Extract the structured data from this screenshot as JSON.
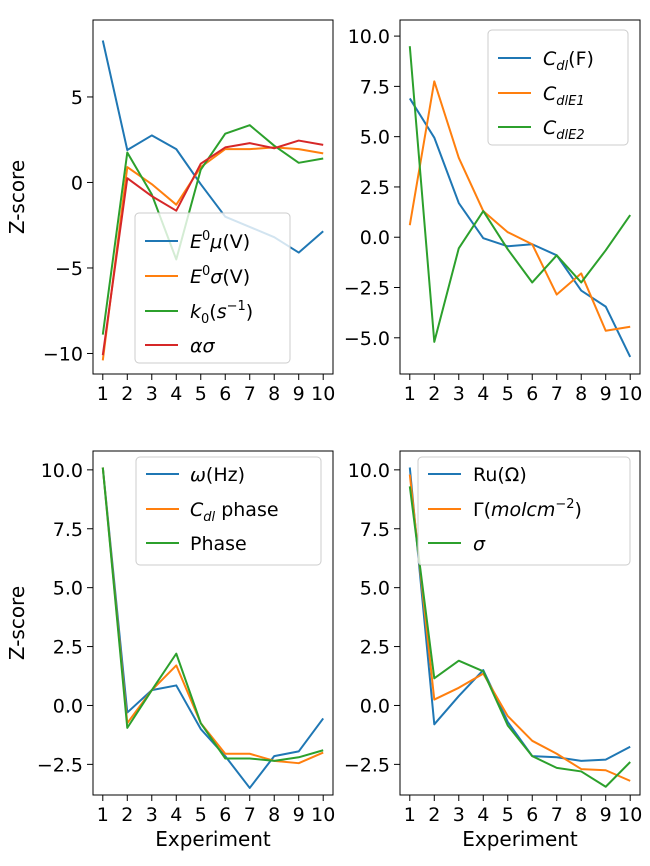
{
  "chart_data": [
    {
      "type": "line",
      "x": [
        1,
        2,
        3,
        4,
        5,
        6,
        7,
        8,
        9,
        10
      ],
      "ylabel": "Z-score",
      "xlabel": "",
      "ylim": [
        -11.2,
        9.5
      ],
      "yticks": [
        5,
        0,
        -5,
        -10
      ],
      "ytick_labels": [
        "5",
        "0",
        "−5",
        "−10"
      ],
      "legend_position": "lower-right",
      "series": [
        {
          "name": "E0μ(V)",
          "color": "#1f77b4",
          "values": [
            8.3,
            1.9,
            2.75,
            1.95,
            -0.1,
            -2.0,
            -2.6,
            -3.2,
            -4.1,
            -2.85
          ]
        },
        {
          "name": "E0σ(V)",
          "color": "#ff7f0e",
          "values": [
            -10.4,
            0.9,
            -0.1,
            -1.3,
            0.9,
            1.95,
            1.95,
            2.05,
            1.95,
            1.7
          ]
        },
        {
          "name": "k0(s−1)",
          "color": "#2ca02c",
          "values": [
            -8.9,
            1.75,
            -0.7,
            -4.5,
            0.75,
            2.85,
            3.35,
            2.15,
            1.15,
            1.4
          ]
        },
        {
          "name": "ασ",
          "color": "#d62728",
          "values": [
            -10.1,
            0.25,
            -0.8,
            -1.65,
            1.1,
            2.05,
            2.3,
            2.0,
            2.45,
            2.2
          ]
        }
      ]
    },
    {
      "type": "line",
      "x": [
        1,
        2,
        3,
        4,
        5,
        6,
        7,
        8,
        9,
        10
      ],
      "ylabel": "",
      "xlabel": "",
      "ylim": [
        -6.8,
        10.8
      ],
      "yticks": [
        10.0,
        7.5,
        5.0,
        2.5,
        0.0,
        -2.5,
        -5.0
      ],
      "ytick_labels": [
        "10.0",
        "7.5",
        "5.0",
        "2.5",
        "0.0",
        "−2.5",
        "−5.0"
      ],
      "legend_position": "upper-right",
      "series": [
        {
          "name": "Cdl(F)",
          "color": "#1f77b4",
          "values": [
            6.9,
            4.95,
            1.7,
            -0.05,
            -0.45,
            -0.35,
            -0.9,
            -2.65,
            -3.45,
            -5.95
          ]
        },
        {
          "name": "CdlE1",
          "color": "#ff7f0e",
          "values": [
            0.6,
            7.75,
            3.95,
            1.3,
            0.25,
            -0.35,
            -2.85,
            -1.8,
            -4.65,
            -4.45
          ]
        },
        {
          "name": "CdlE2",
          "color": "#2ca02c",
          "values": [
            9.5,
            -5.2,
            -0.55,
            1.3,
            -0.6,
            -2.25,
            -0.9,
            -2.25,
            -0.65,
            1.1
          ]
        }
      ]
    },
    {
      "type": "line",
      "x": [
        1,
        2,
        3,
        4,
        5,
        6,
        7,
        8,
        9,
        10
      ],
      "ylabel": "Z-score",
      "xlabel": "Experiment",
      "ylim": [
        -3.8,
        10.8
      ],
      "yticks": [
        10.0,
        7.5,
        5.0,
        2.5,
        0.0,
        -2.5
      ],
      "ytick_labels": [
        "10.0",
        "7.5",
        "5.0",
        "2.5",
        "0.0",
        "−2.5"
      ],
      "legend_position": "upper-right",
      "series": [
        {
          "name": "ω(Hz)",
          "color": "#1f77b4",
          "values": [
            10.1,
            -0.3,
            0.65,
            0.85,
            -1.0,
            -2.15,
            -3.5,
            -2.15,
            -1.95,
            -0.55
          ]
        },
        {
          "name": "Cdl phase",
          "color": "#ff7f0e",
          "values": [
            10.1,
            -0.75,
            0.65,
            1.7,
            -0.75,
            -2.05,
            -2.05,
            -2.35,
            -2.45,
            -2.0
          ]
        },
        {
          "name": "Phase",
          "color": "#2ca02c",
          "values": [
            10.1,
            -0.95,
            0.65,
            2.2,
            -0.75,
            -2.25,
            -2.25,
            -2.35,
            -2.2,
            -1.9
          ]
        }
      ]
    },
    {
      "type": "line",
      "x": [
        1,
        2,
        3,
        4,
        5,
        6,
        7,
        8,
        9,
        10
      ],
      "ylabel": "",
      "xlabel": "Experiment",
      "ylim": [
        -3.8,
        10.8
      ],
      "yticks": [
        10.0,
        7.5,
        5.0,
        2.5,
        0.0,
        -2.5
      ],
      "ytick_labels": [
        "10.0",
        "7.5",
        "5.0",
        "2.5",
        "0.0",
        "−2.5"
      ],
      "legend_position": "upper-right",
      "series": [
        {
          "name": "Ru(Ω)",
          "color": "#1f77b4",
          "values": [
            10.1,
            -0.8,
            0.4,
            1.5,
            -0.7,
            -2.15,
            -2.2,
            -2.35,
            -2.3,
            -1.75
          ]
        },
        {
          "name": "Γ(molcm−2)",
          "color": "#ff7f0e",
          "values": [
            9.8,
            0.25,
            0.75,
            1.35,
            -0.45,
            -1.5,
            -2.05,
            -2.7,
            -2.75,
            -3.2
          ]
        },
        {
          "name": "σ",
          "color": "#2ca02c",
          "values": [
            9.3,
            1.15,
            1.9,
            1.45,
            -0.85,
            -2.15,
            -2.65,
            -2.8,
            -3.45,
            -2.4
          ]
        }
      ]
    }
  ]
}
